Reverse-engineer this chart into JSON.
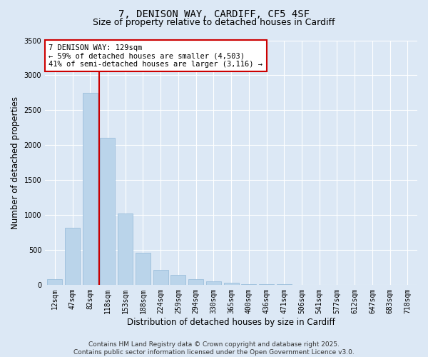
{
  "title_line1": "7, DENISON WAY, CARDIFF, CF5 4SF",
  "title_line2": "Size of property relative to detached houses in Cardiff",
  "xlabel": "Distribution of detached houses by size in Cardiff",
  "ylabel": "Number of detached properties",
  "categories": [
    "12sqm",
    "47sqm",
    "82sqm",
    "118sqm",
    "153sqm",
    "188sqm",
    "224sqm",
    "259sqm",
    "294sqm",
    "330sqm",
    "365sqm",
    "400sqm",
    "436sqm",
    "471sqm",
    "506sqm",
    "541sqm",
    "577sqm",
    "612sqm",
    "647sqm",
    "683sqm",
    "718sqm"
  ],
  "values": [
    75,
    820,
    2750,
    2100,
    1020,
    460,
    210,
    145,
    75,
    45,
    30,
    10,
    5,
    5,
    0,
    0,
    0,
    0,
    0,
    0,
    0
  ],
  "bar_color": "#bad4ea",
  "bar_edge_color": "#92b8d8",
  "vline_color": "#cc0000",
  "annotation_text": "7 DENISON WAY: 129sqm\n← 59% of detached houses are smaller (4,503)\n41% of semi-detached houses are larger (3,116) →",
  "annotation_box_facecolor": "#ffffff",
  "annotation_box_edgecolor": "#cc0000",
  "ylim": [
    0,
    3500
  ],
  "yticks": [
    0,
    500,
    1000,
    1500,
    2000,
    2500,
    3000,
    3500
  ],
  "background_color": "#dce8f5",
  "plot_bg_color": "#dce8f5",
  "footer_line1": "Contains HM Land Registry data © Crown copyright and database right 2025.",
  "footer_line2": "Contains public sector information licensed under the Open Government Licence v3.0.",
  "title_fontsize": 10,
  "subtitle_fontsize": 9,
  "tick_fontsize": 7,
  "label_fontsize": 8.5,
  "footer_fontsize": 6.5,
  "annotation_fontsize": 7.5
}
